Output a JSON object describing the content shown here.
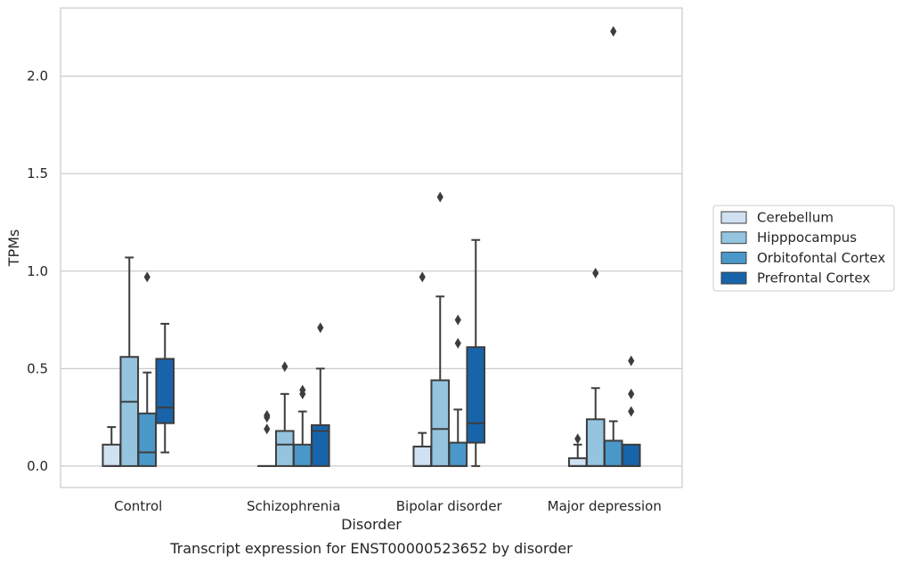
{
  "chart_data": {
    "type": "box",
    "caption": "Transcript expression for ENST00000523652 by disorder",
    "xlabel": "Disorder",
    "ylabel": "TPMs",
    "ylim": [
      -0.11,
      2.35
    ],
    "yticks": [
      "0.0",
      "0.5",
      "1.0",
      "1.5",
      "2.0"
    ],
    "grid": "horizontal",
    "legend_position": "right",
    "categories": [
      "Control",
      "Schizophrenia",
      "Bipolar disorder",
      "Major depression"
    ],
    "series": [
      {
        "name": "Cerebellum",
        "color": "#d0e1f2",
        "boxes": [
          {
            "whisker_low": 0.0,
            "q1": 0.0,
            "median": 0.0,
            "q3": 0.11,
            "whisker_high": 0.2,
            "outliers": []
          },
          {
            "whisker_low": 0.0,
            "q1": 0.0,
            "median": 0.0,
            "q3": 0.0,
            "whisker_high": 0.0,
            "outliers": [
              0.19,
              0.25,
              0.26
            ]
          },
          {
            "whisker_low": 0.0,
            "q1": 0.0,
            "median": 0.0,
            "q3": 0.1,
            "whisker_high": 0.17,
            "outliers": [
              0.97
            ]
          },
          {
            "whisker_low": 0.0,
            "q1": 0.0,
            "median": 0.0,
            "q3": 0.04,
            "whisker_high": 0.11,
            "outliers": [
              0.14
            ]
          }
        ]
      },
      {
        "name": "Hipppocampus",
        "color": "#94c4df",
        "boxes": [
          {
            "whisker_low": 0.0,
            "q1": 0.0,
            "median": 0.33,
            "q3": 0.56,
            "whisker_high": 1.07,
            "outliers": []
          },
          {
            "whisker_low": 0.0,
            "q1": 0.0,
            "median": 0.11,
            "q3": 0.18,
            "whisker_high": 0.37,
            "outliers": [
              0.51
            ]
          },
          {
            "whisker_low": 0.0,
            "q1": 0.0,
            "median": 0.19,
            "q3": 0.44,
            "whisker_high": 0.87,
            "outliers": [
              1.38
            ]
          },
          {
            "whisker_low": 0.0,
            "q1": 0.0,
            "median": 0.0,
            "q3": 0.24,
            "whisker_high": 0.4,
            "outliers": [
              0.99
            ]
          }
        ]
      },
      {
        "name": "Orbitofontal Cortex",
        "color": "#4a98c9",
        "boxes": [
          {
            "whisker_low": 0.0,
            "q1": 0.0,
            "median": 0.07,
            "q3": 0.27,
            "whisker_high": 0.48,
            "outliers": [
              0.97
            ]
          },
          {
            "whisker_low": 0.0,
            "q1": 0.0,
            "median": 0.0,
            "q3": 0.11,
            "whisker_high": 0.28,
            "outliers": [
              0.37,
              0.39
            ]
          },
          {
            "whisker_low": 0.0,
            "q1": 0.0,
            "median": 0.0,
            "q3": 0.12,
            "whisker_high": 0.29,
            "outliers": [
              0.63,
              0.75
            ]
          },
          {
            "whisker_low": 0.0,
            "q1": 0.0,
            "median": 0.0,
            "q3": 0.13,
            "whisker_high": 0.23,
            "outliers": [
              2.23
            ]
          }
        ]
      },
      {
        "name": "Prefrontal Cortex",
        "color": "#1764ab",
        "boxes": [
          {
            "whisker_low": 0.07,
            "q1": 0.22,
            "median": 0.3,
            "q3": 0.55,
            "whisker_high": 0.73,
            "outliers": []
          },
          {
            "whisker_low": 0.0,
            "q1": 0.0,
            "median": 0.18,
            "q3": 0.21,
            "whisker_high": 0.5,
            "outliers": [
              0.71
            ]
          },
          {
            "whisker_low": 0.0,
            "q1": 0.12,
            "median": 0.22,
            "q3": 0.61,
            "whisker_high": 1.16,
            "outliers": []
          },
          {
            "whisker_low": 0.0,
            "q1": 0.0,
            "median": 0.0,
            "q3": 0.11,
            "whisker_high": 0.11,
            "outliers": [
              0.28,
              0.37,
              0.54
            ]
          }
        ]
      }
    ]
  }
}
